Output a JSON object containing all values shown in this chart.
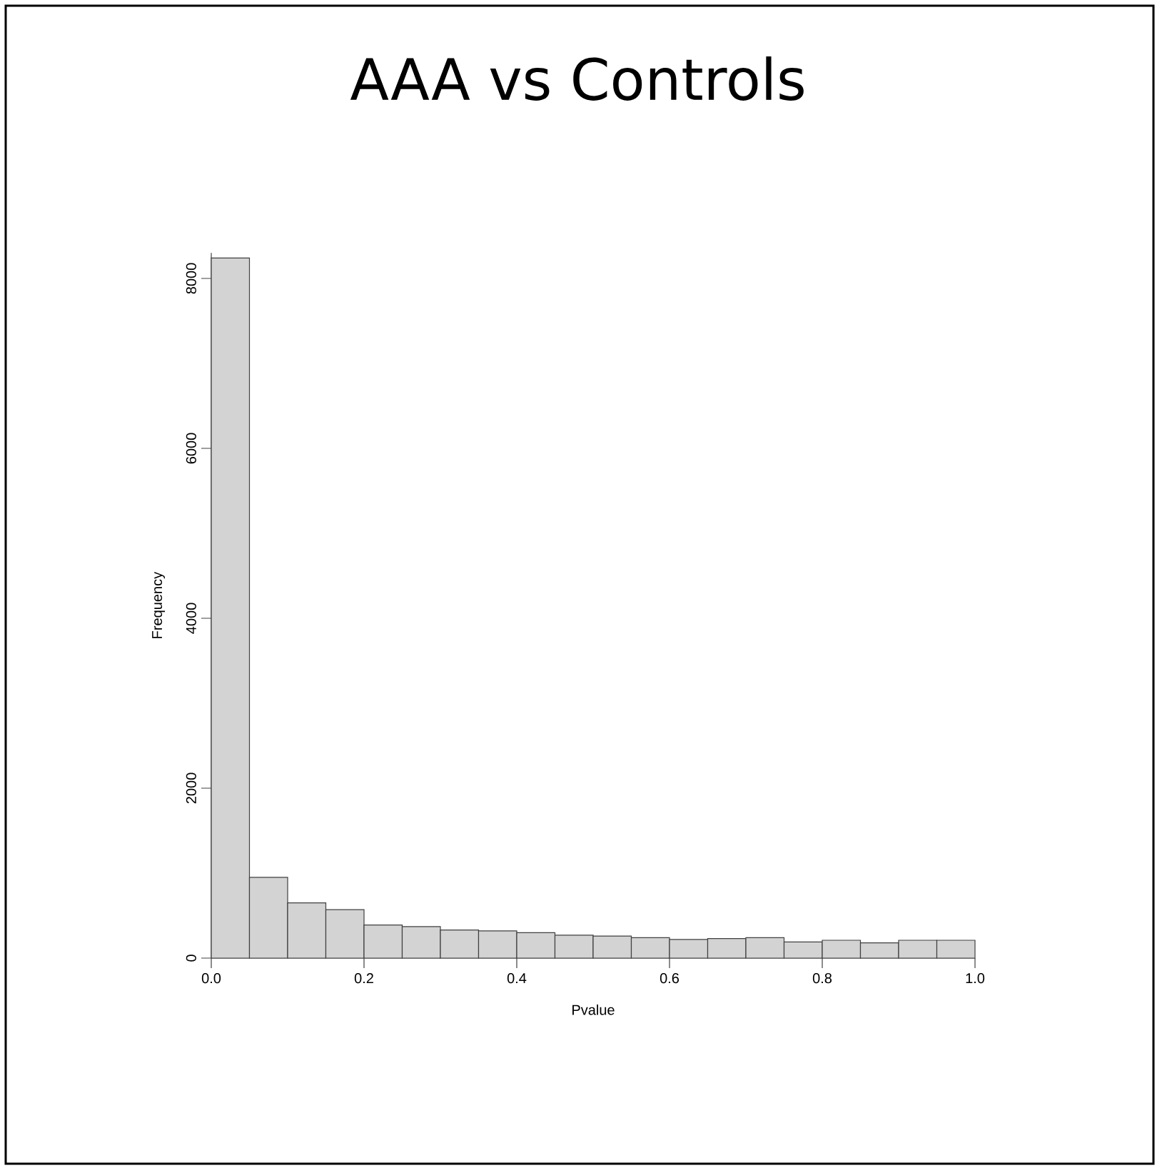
{
  "chart_data": {
    "type": "histogram",
    "title": "AAA vs Controls",
    "xlabel": "Pvalue",
    "ylabel": "Frequency",
    "bins": [
      0,
      0.05,
      0.1,
      0.15,
      0.2,
      0.25,
      0.3,
      0.35,
      0.4,
      0.45,
      0.5,
      0.55,
      0.6,
      0.65,
      0.7,
      0.75,
      0.8,
      0.85,
      0.9,
      0.95,
      1.0
    ],
    "values": [
      8240,
      950,
      650,
      570,
      390,
      370,
      330,
      320,
      300,
      270,
      260,
      240,
      220,
      230,
      240,
      190,
      210,
      180,
      210,
      210
    ],
    "color": "#d3d3d3",
    "xlim": [
      0,
      1
    ],
    "ylim": [
      0,
      8300
    ],
    "xticks": [
      {
        "value": 0,
        "label": "0.0"
      },
      {
        "value": 0.2,
        "label": "0.2"
      },
      {
        "value": 0.4,
        "label": "0.4"
      },
      {
        "value": 0.6,
        "label": "0.6"
      },
      {
        "value": 0.8,
        "label": "0.8"
      },
      {
        "value": 1,
        "label": "1.0"
      }
    ],
    "yticks": [
      0,
      2000,
      4000,
      6000,
      8000
    ],
    "grid": false
  }
}
